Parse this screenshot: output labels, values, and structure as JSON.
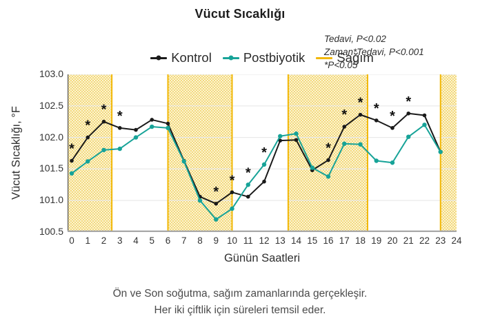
{
  "title": "Vücut Sıcaklığı",
  "annotation": {
    "lines": [
      "Tedavi, P<0.02",
      "Zaman*Tedavi, P<0.001",
      "*P<0.05"
    ]
  },
  "legend": [
    {
      "label": "Kontrol",
      "color": "#1a1a1a",
      "marker": "line-dot"
    },
    {
      "label": "Postbiyotik",
      "color": "#17a398",
      "marker": "line-dot"
    },
    {
      "label": "Sağım",
      "color": "#f2b705",
      "marker": "line"
    }
  ],
  "caption": {
    "line1": "Ön ve Son soğutma, sağım zamanlarında gerçekleşir.",
    "line2": "Her iki çiftlik için süreleri temsil eder."
  },
  "chart_data": {
    "type": "line",
    "title": "Vücut Sıcaklığı",
    "xlabel": "Günün Saatleri",
    "ylabel": "Vücut Sıcaklığı, °F",
    "xlim": [
      0,
      24
    ],
    "ylim": [
      100.5,
      103.0
    ],
    "grid": true,
    "legend_position": "top",
    "xticks": [
      "0",
      "1",
      "2",
      "3",
      "4",
      "5",
      "6",
      "7",
      "8",
      "9",
      "10",
      "11",
      "12",
      "13",
      "14",
      "15",
      "16",
      "17",
      "18",
      "19",
      "20",
      "21",
      "22",
      "23",
      "24"
    ],
    "yticks": [
      "103.0",
      "102.5",
      "102.0",
      "101.5",
      "101.0",
      "100.5"
    ],
    "x": [
      0,
      1,
      2,
      3,
      4,
      5,
      6,
      7,
      8,
      9,
      10,
      11,
      12,
      13,
      14,
      15,
      16,
      17,
      18,
      19,
      20,
      21,
      22,
      23
    ],
    "series": [
      {
        "name": "Kontrol",
        "color": "#1a1a1a",
        "values": [
          101.63,
          102.0,
          102.25,
          102.15,
          102.12,
          102.28,
          102.22,
          101.63,
          101.06,
          100.95,
          101.13,
          101.06,
          101.3,
          101.95,
          101.96,
          101.48,
          101.64,
          102.17,
          102.36,
          102.27,
          102.15,
          102.38,
          102.35,
          101.77
        ]
      },
      {
        "name": "Postbiyotik",
        "color": "#17a398",
        "values": [
          101.43,
          101.62,
          101.8,
          101.82,
          102.0,
          102.17,
          102.15,
          101.62,
          101.0,
          100.7,
          100.87,
          101.25,
          101.57,
          102.02,
          102.06,
          101.52,
          101.38,
          101.9,
          101.89,
          101.63,
          101.6,
          102.01,
          102.2,
          101.77
        ]
      }
    ],
    "shaded_regions": {
      "name": "Sağım",
      "border_color": "#f2b705",
      "fill_colors": [
        "#f3d97e",
        "#fcf4d2"
      ],
      "ranges": [
        [
          0,
          2.5
        ],
        [
          6,
          10
        ],
        [
          13.5,
          18.45
        ],
        [
          23,
          24
        ]
      ]
    },
    "significance_marker": "*",
    "significance_hours": [
      0,
      1,
      2,
      3,
      9,
      10,
      11,
      12,
      16,
      17,
      18,
      19,
      20,
      21
    ],
    "gridline_color": "#e9e9e9",
    "axis_color_left": "#4a4a4a",
    "axis_color_bottom": "#a8a8a8"
  }
}
